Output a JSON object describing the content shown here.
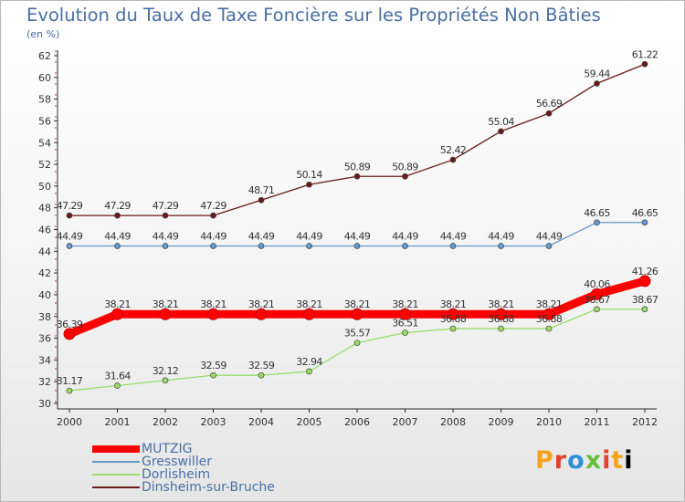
{
  "chart_data": {
    "type": "line",
    "title": "Evolution du Taux de Taxe Foncière sur les Propriétés Non Bâties",
    "subtitle": "(en %)",
    "xlabel": "",
    "ylabel": "",
    "ylim": [
      30,
      62
    ],
    "yticks": [
      "30",
      "32",
      "34",
      "36",
      "38",
      "40",
      "42",
      "44",
      "46",
      "48",
      "50",
      "52",
      "54",
      "56",
      "58",
      "60",
      "62"
    ],
    "x": [
      "2000",
      "2001",
      "2002",
      "2003",
      "2004",
      "2005",
      "2006",
      "2007",
      "2008",
      "2009",
      "2010",
      "2011",
      "2012"
    ],
    "grid": false,
    "legend": "bottom-left",
    "series": [
      {
        "name": "MUTZIG",
        "color": "#ff0000",
        "values": [
          36.39,
          38.21,
          38.21,
          38.21,
          38.21,
          38.21,
          38.21,
          38.21,
          38.21,
          38.21,
          38.21,
          40.06,
          41.26
        ],
        "labels": [
          "36.39",
          "38.21",
          "38.21",
          "38.21",
          "38.21",
          "38.21",
          "38.21",
          "38.21",
          "38.21",
          "38.21",
          "38.21",
          "40.06",
          "41.26"
        ]
      },
      {
        "name": "Gresswiller",
        "color": "#6699cc",
        "values": [
          44.49,
          44.49,
          44.49,
          44.49,
          44.49,
          44.49,
          44.49,
          44.49,
          44.49,
          44.49,
          44.49,
          46.65,
          46.65
        ],
        "labels": [
          "44.49",
          "44.49",
          "44.49",
          "44.49",
          "44.49",
          "44.49",
          "44.49",
          "44.49",
          "44.49",
          "44.49",
          "44.49",
          "46.65",
          "46.65"
        ]
      },
      {
        "name": "Dorlisheim",
        "color": "#99dd66",
        "values": [
          31.17,
          31.64,
          32.12,
          32.59,
          32.59,
          32.94,
          35.57,
          36.51,
          36.88,
          36.88,
          36.88,
          38.67,
          38.67
        ],
        "labels": [
          "31.17",
          "31.64",
          "32.12",
          "32.59",
          "32.59",
          "32.94",
          "35.57",
          "36.51",
          "36.88",
          "36.88",
          "36.88",
          "38.67",
          "38.67"
        ]
      },
      {
        "name": "Dinsheim-sur-Bruche",
        "color": "#6b1a1a",
        "values": [
          47.29,
          47.29,
          47.29,
          47.29,
          48.71,
          50.14,
          50.89,
          50.89,
          52.42,
          55.04,
          56.69,
          59.44,
          61.22
        ],
        "labels": [
          "47.29",
          "47.29",
          "47.29",
          "47.29",
          "48.71",
          "50.14",
          "50.89",
          "50.89",
          "52.42",
          "55.04",
          "56.69",
          "59.44",
          "61.22"
        ]
      }
    ]
  },
  "logo": {
    "letters": [
      "P",
      "r",
      "o",
      "x",
      "i",
      "t",
      "i"
    ]
  }
}
